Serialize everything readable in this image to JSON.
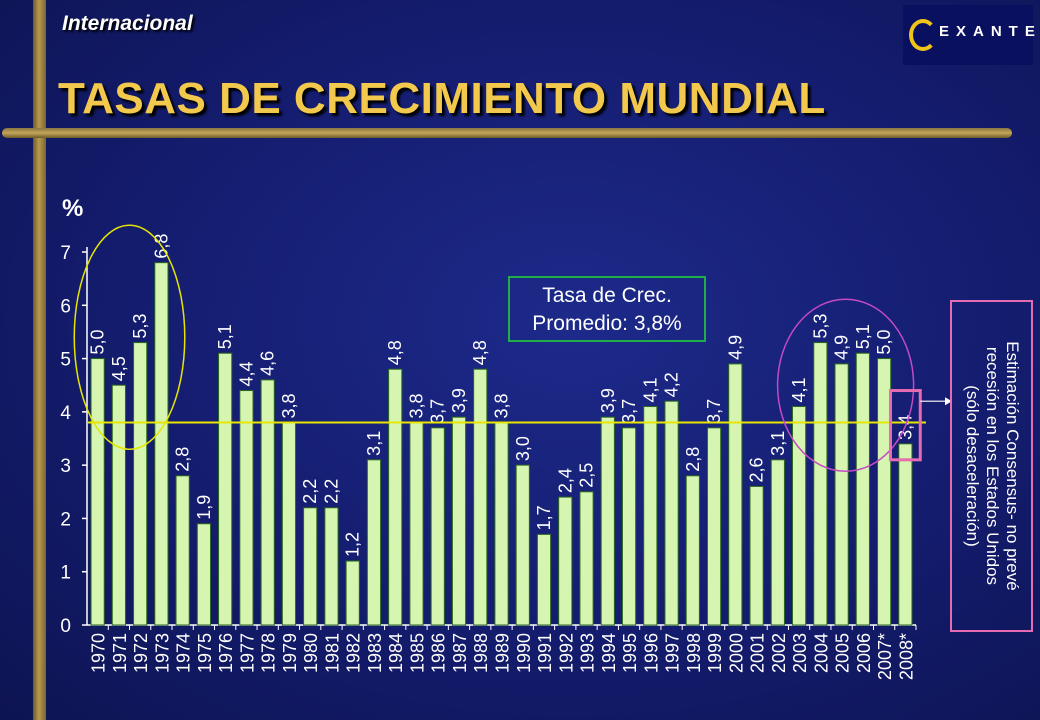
{
  "header": {
    "section": "Internacional",
    "title": "TASAS DE CRECIMIENTO MUNDIAL",
    "logo_text": "EXANTE"
  },
  "average_box": {
    "line1": "Tasa de Crec.",
    "line2": "Promedio: 3,8%"
  },
  "note": {
    "line1": "Estimación Consensus- no prevé",
    "line2": "recesión en los Estados Unidos",
    "line3": "(sólo desaceleración)"
  },
  "colors": {
    "bar_fill": "#d6f5b0",
    "reference_line": "#e6e600",
    "ellipse_left": "#e6e600",
    "ellipse_right": "#c44bc4",
    "highlight_box": "#e66bb3",
    "avg_box_border": "#1fae4a",
    "title": "#f2c94c"
  },
  "chart_data": {
    "type": "bar",
    "ylabel": "%",
    "ylim": [
      0,
      7
    ],
    "yticks": [
      0,
      1,
      2,
      3,
      4,
      5,
      6,
      7
    ],
    "reference_line": 3.8,
    "categories": [
      "1970",
      "1971",
      "1972",
      "1973",
      "1974",
      "1975",
      "1976",
      "1977",
      "1978",
      "1979",
      "1980",
      "1981",
      "1982",
      "1983",
      "1984",
      "1985",
      "1986",
      "1987",
      "1988",
      "1989",
      "1990",
      "1991",
      "1992",
      "1993",
      "1994",
      "1995",
      "1996",
      "1997",
      "1998",
      "1999",
      "2000",
      "2001",
      "2002",
      "2003",
      "2004",
      "2005",
      "2006",
      "2007*",
      "2008*"
    ],
    "values": [
      5.0,
      4.5,
      5.3,
      6.8,
      2.8,
      1.9,
      5.1,
      4.4,
      4.6,
      3.8,
      2.2,
      2.2,
      1.2,
      3.1,
      4.8,
      3.8,
      3.7,
      3.9,
      4.8,
      3.8,
      3.0,
      1.7,
      2.4,
      2.5,
      3.9,
      3.7,
      4.1,
      4.2,
      2.8,
      3.7,
      4.9,
      2.6,
      3.1,
      4.1,
      5.3,
      4.9,
      5.1,
      5.0,
      3.4
    ],
    "data_labels": [
      "5,0",
      "4,5",
      "5,3",
      "6,8",
      "2,8",
      "1,9",
      "5,1",
      "4,4",
      "4,6",
      "3,8",
      "2,2",
      "2,2",
      "1,2",
      "3,1",
      "4,8",
      "3,8",
      "3,7",
      "3,9",
      "4,8",
      "3,8",
      "3,0",
      "1,7",
      "2,4",
      "2,5",
      "3,9",
      "3,7",
      "4,1",
      "4,2",
      "2,8",
      "3,7",
      "4,9",
      "2,6",
      "3,1",
      "4,1",
      "5,3",
      "4,9",
      "5,1",
      "5,0",
      "3,4"
    ]
  }
}
